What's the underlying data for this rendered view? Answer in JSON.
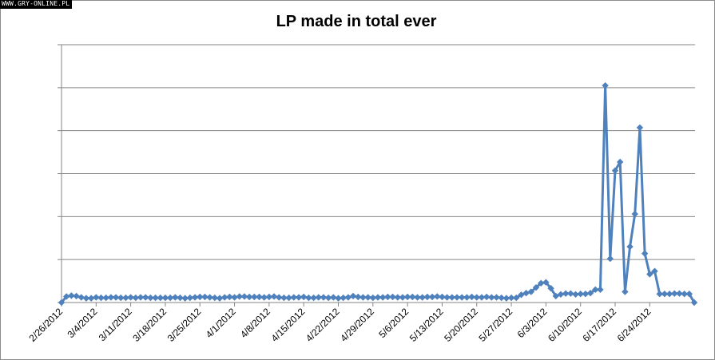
{
  "watermark": "WWW.GRY-ONLINE.PL",
  "chart_data": {
    "type": "line",
    "title": "LP made in total ever",
    "xlabel": "",
    "ylabel": "",
    "y_tick_labels_shown": false,
    "grid": "horizontal",
    "legend": "none",
    "series_color": "#4F81BD",
    "marker": "diamond",
    "y_max_gridlines": 6,
    "x_tick_labels": [
      "2/26/2012",
      "3/4/2012",
      "3/11/2012",
      "3/18/2012",
      "3/25/2012",
      "4/1/2012",
      "4/8/2012",
      "4/15/2012",
      "4/22/2012",
      "4/29/2012",
      "5/6/2012",
      "5/13/2012",
      "5/20/2012",
      "5/27/2012",
      "6/3/2012",
      "6/10/2012",
      "6/17/2012",
      "6/24/2012"
    ],
    "x": [
      "2/26/2012",
      "2/27/2012",
      "2/28/2012",
      "2/29/2012",
      "3/1/2012",
      "3/2/2012",
      "3/3/2012",
      "3/4/2012",
      "3/5/2012",
      "3/6/2012",
      "3/7/2012",
      "3/8/2012",
      "3/9/2012",
      "3/10/2012",
      "3/11/2012",
      "3/12/2012",
      "3/13/2012",
      "3/14/2012",
      "3/15/2012",
      "3/16/2012",
      "3/17/2012",
      "3/18/2012",
      "3/19/2012",
      "3/20/2012",
      "3/21/2012",
      "3/22/2012",
      "3/23/2012",
      "3/24/2012",
      "3/25/2012",
      "3/26/2012",
      "3/27/2012",
      "3/28/2012",
      "3/29/2012",
      "3/30/2012",
      "3/31/2012",
      "4/1/2012",
      "4/2/2012",
      "4/3/2012",
      "4/4/2012",
      "4/5/2012",
      "4/6/2012",
      "4/7/2012",
      "4/8/2012",
      "4/9/2012",
      "4/10/2012",
      "4/11/2012",
      "4/12/2012",
      "4/13/2012",
      "4/14/2012",
      "4/15/2012",
      "4/16/2012",
      "4/17/2012",
      "4/18/2012",
      "4/19/2012",
      "4/20/2012",
      "4/21/2012",
      "4/22/2012",
      "4/23/2012",
      "4/24/2012",
      "4/25/2012",
      "4/26/2012",
      "4/27/2012",
      "4/28/2012",
      "4/29/2012",
      "4/30/2012",
      "5/1/2012",
      "5/2/2012",
      "5/3/2012",
      "5/4/2012",
      "5/5/2012",
      "5/6/2012",
      "5/7/2012",
      "5/8/2012",
      "5/9/2012",
      "5/10/2012",
      "5/11/2012",
      "5/12/2012",
      "5/13/2012",
      "5/14/2012",
      "5/15/2012",
      "5/16/2012",
      "5/17/2012",
      "5/18/2012",
      "5/19/2012",
      "5/20/2012",
      "5/21/2012",
      "5/22/2012",
      "5/23/2012",
      "5/24/2012",
      "5/25/2012",
      "5/26/2012",
      "5/27/2012",
      "5/28/2012",
      "5/29/2012",
      "5/30/2012",
      "5/31/2012",
      "6/1/2012",
      "6/2/2012",
      "6/3/2012",
      "6/4/2012",
      "6/5/2012",
      "6/6/2012",
      "6/7/2012",
      "6/8/2012",
      "6/9/2012",
      "6/10/2012",
      "6/11/2012",
      "6/12/2012",
      "6/13/2012",
      "6/14/2012",
      "6/15/2012",
      "6/16/2012",
      "6/17/2012",
      "6/18/2012",
      "6/19/2012",
      "6/20/2012",
      "6/21/2012",
      "6/22/2012",
      "6/23/2012",
      "6/24/2012",
      "6/25/2012",
      "6/26/2012",
      "6/27/2012",
      "6/28/2012",
      "6/29/2012",
      "6/30/2012"
    ],
    "values_in_gridline_units": [
      0,
      0.14,
      0.16,
      0.15,
      0.12,
      0.1,
      0.1,
      0.12,
      0.11,
      0.11,
      0.12,
      0.12,
      0.11,
      0.11,
      0.12,
      0.11,
      0.12,
      0.12,
      0.11,
      0.11,
      0.11,
      0.11,
      0.11,
      0.12,
      0.11,
      0.1,
      0.11,
      0.12,
      0.13,
      0.13,
      0.12,
      0.11,
      0.1,
      0.12,
      0.13,
      0.12,
      0.14,
      0.14,
      0.13,
      0.13,
      0.13,
      0.12,
      0.13,
      0.14,
      0.12,
      0.11,
      0.11,
      0.12,
      0.12,
      0.13,
      0.11,
      0.11,
      0.12,
      0.12,
      0.11,
      0.12,
      0.1,
      0.11,
      0.12,
      0.15,
      0.13,
      0.12,
      0.12,
      0.11,
      0.12,
      0.12,
      0.13,
      0.13,
      0.12,
      0.12,
      0.13,
      0.13,
      0.12,
      0.12,
      0.13,
      0.13,
      0.14,
      0.13,
      0.12,
      0.12,
      0.12,
      0.12,
      0.12,
      0.13,
      0.12,
      0.12,
      0.13,
      0.12,
      0.12,
      0.11,
      0.1,
      0.11,
      0.11,
      0.18,
      0.22,
      0.25,
      0.35,
      0.45,
      0.47,
      0.33,
      0.15,
      0.19,
      0.21,
      0.21,
      0.19,
      0.2,
      0.2,
      0.22,
      0.3,
      0.3,
      5.05,
      1.02,
      3.07,
      3.27,
      0.25,
      1.3,
      2.06,
      4.07,
      1.14,
      0.66,
      0.73,
      0.2,
      0.2,
      0.2,
      0.21,
      0.21,
      0.2,
      0.2,
      0
    ]
  }
}
